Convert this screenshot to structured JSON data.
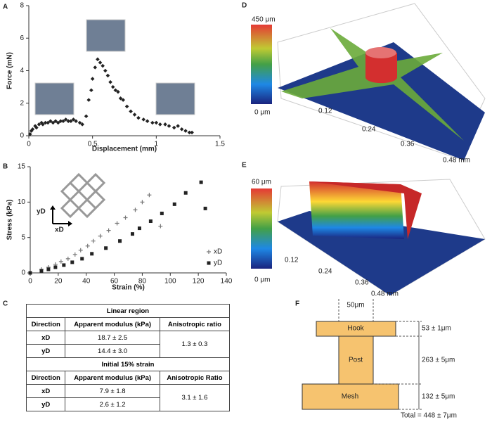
{
  "panel_labels": [
    "A",
    "B",
    "C",
    "D",
    "E",
    "F"
  ],
  "chart_data": [
    {
      "type": "scatter",
      "xlabel": "Displacement (mm)",
      "ylabel": "Force (mN)",
      "color": "#222222",
      "marker": "diamond",
      "x": [
        0.01,
        0.02,
        0.03,
        0.05,
        0.06,
        0.08,
        0.1,
        0.11,
        0.13,
        0.15,
        0.17,
        0.19,
        0.21,
        0.23,
        0.25,
        0.27,
        0.29,
        0.31,
        0.33,
        0.35,
        0.37,
        0.4,
        0.42,
        0.45,
        0.47,
        0.49,
        0.5,
        0.52,
        0.54,
        0.56,
        0.58,
        0.6,
        0.62,
        0.64,
        0.66,
        0.68,
        0.7,
        0.72,
        0.74,
        0.77,
        0.8,
        0.83,
        0.86,
        0.9,
        0.93,
        0.97,
        1.0,
        1.03,
        1.07,
        1.1,
        1.14,
        1.17,
        1.2,
        1.23,
        1.26,
        1.28
      ],
      "values": [
        0.1,
        0.3,
        0.4,
        0.6,
        0.5,
        0.7,
        0.8,
        0.7,
        0.8,
        0.8,
        0.9,
        0.8,
        0.9,
        0.8,
        0.9,
        0.9,
        1.0,
        0.9,
        0.9,
        1.0,
        0.9,
        0.8,
        0.7,
        1.2,
        2.2,
        2.8,
        3.5,
        4.2,
        4.7,
        4.5,
        4.3,
        4.0,
        3.7,
        3.3,
        3.0,
        2.8,
        2.7,
        2.3,
        2.2,
        1.8,
        1.5,
        1.3,
        1.1,
        1.0,
        0.9,
        0.8,
        0.8,
        0.7,
        0.7,
        0.6,
        0.5,
        0.6,
        0.4,
        0.3,
        0.2,
        0.2
      ],
      "xlim": [
        0,
        1.5
      ],
      "xticks": [
        0,
        0.5,
        1,
        1.5
      ],
      "ylim": [
        0,
        8
      ],
      "yticks": [
        0,
        2,
        4,
        6,
        8
      ]
    },
    {
      "type": "scatter",
      "xlabel": "Strain (%)",
      "ylabel": "Stress (kPa)",
      "legend": "lower right",
      "annotations": [
        "yD",
        "xD"
      ],
      "series": [
        {
          "name": "xD",
          "color": "#777777",
          "marker": "plus",
          "x": [
            0,
            8,
            13,
            18,
            22,
            27,
            32,
            36,
            41,
            45,
            50,
            56,
            62,
            68,
            75,
            80,
            85,
            93
          ],
          "values": [
            0,
            0.5,
            0.8,
            1.2,
            1.6,
            2,
            2.6,
            3.2,
            3.8,
            4.5,
            5.2,
            6,
            7,
            7.8,
            8.9,
            10,
            11,
            6.6
          ]
        },
        {
          "name": "yD",
          "color": "#222222",
          "marker": "square",
          "x": [
            0,
            8,
            13,
            18,
            24,
            30,
            37,
            44,
            54,
            64,
            73,
            78,
            86,
            94,
            103,
            111,
            122,
            125
          ],
          "values": [
            0,
            0.3,
            0.5,
            0.8,
            1.1,
            1.5,
            2,
            2.7,
            3.5,
            4.5,
            5.5,
            6.3,
            7.3,
            8.4,
            9.7,
            11.3,
            12.8,
            9.1
          ]
        }
      ],
      "xlim": [
        0,
        140
      ],
      "xticks": [
        0,
        20,
        40,
        60,
        80,
        100,
        120,
        140
      ],
      "ylim": [
        0,
        15
      ],
      "yticks": [
        0,
        5,
        10,
        15
      ]
    }
  ],
  "table": {
    "sections": [
      {
        "title": "Linear region",
        "headers": [
          "Direction",
          "Apparent modulus (kPa)",
          "Anisotropic ratio"
        ],
        "rows": [
          [
            "xD",
            "18.7 ± 2.5"
          ],
          [
            "yD",
            "14.4 ± 3.0"
          ]
        ],
        "ratio": "1.3 ± 0.3"
      },
      {
        "title": "Initial 15% strain",
        "headers": [
          "Direction",
          "Apparent modulus (kPa)",
          "Anisotropic Ratio"
        ],
        "rows": [
          [
            "xD",
            "7.9 ± 1.8"
          ],
          [
            "yD",
            "2.6 ± 1.2"
          ]
        ],
        "ratio": "3.1 ± 1.6"
      }
    ]
  },
  "surfaces": [
    {
      "scale_max": "450 μm",
      "scale_min": "0 μm",
      "axis_labels": [
        "0.12",
        "0.24",
        "0.36",
        "0.48 mm"
      ]
    },
    {
      "scale_max": "60 μm",
      "scale_min": "0 μm",
      "axis_labels": [
        "0.12",
        "0.24",
        "0.36",
        "0.48 mm"
      ]
    }
  ],
  "diagram": {
    "width_label": "50μm",
    "parts": [
      {
        "label": "Hook",
        "dimension": "53 ± 1μm"
      },
      {
        "label": "Post",
        "dimension": "263 ± 5μm"
      },
      {
        "label": "Mesh",
        "dimension": "132 ± 5μm"
      }
    ],
    "total": "Total = 448 ± 7μm"
  }
}
